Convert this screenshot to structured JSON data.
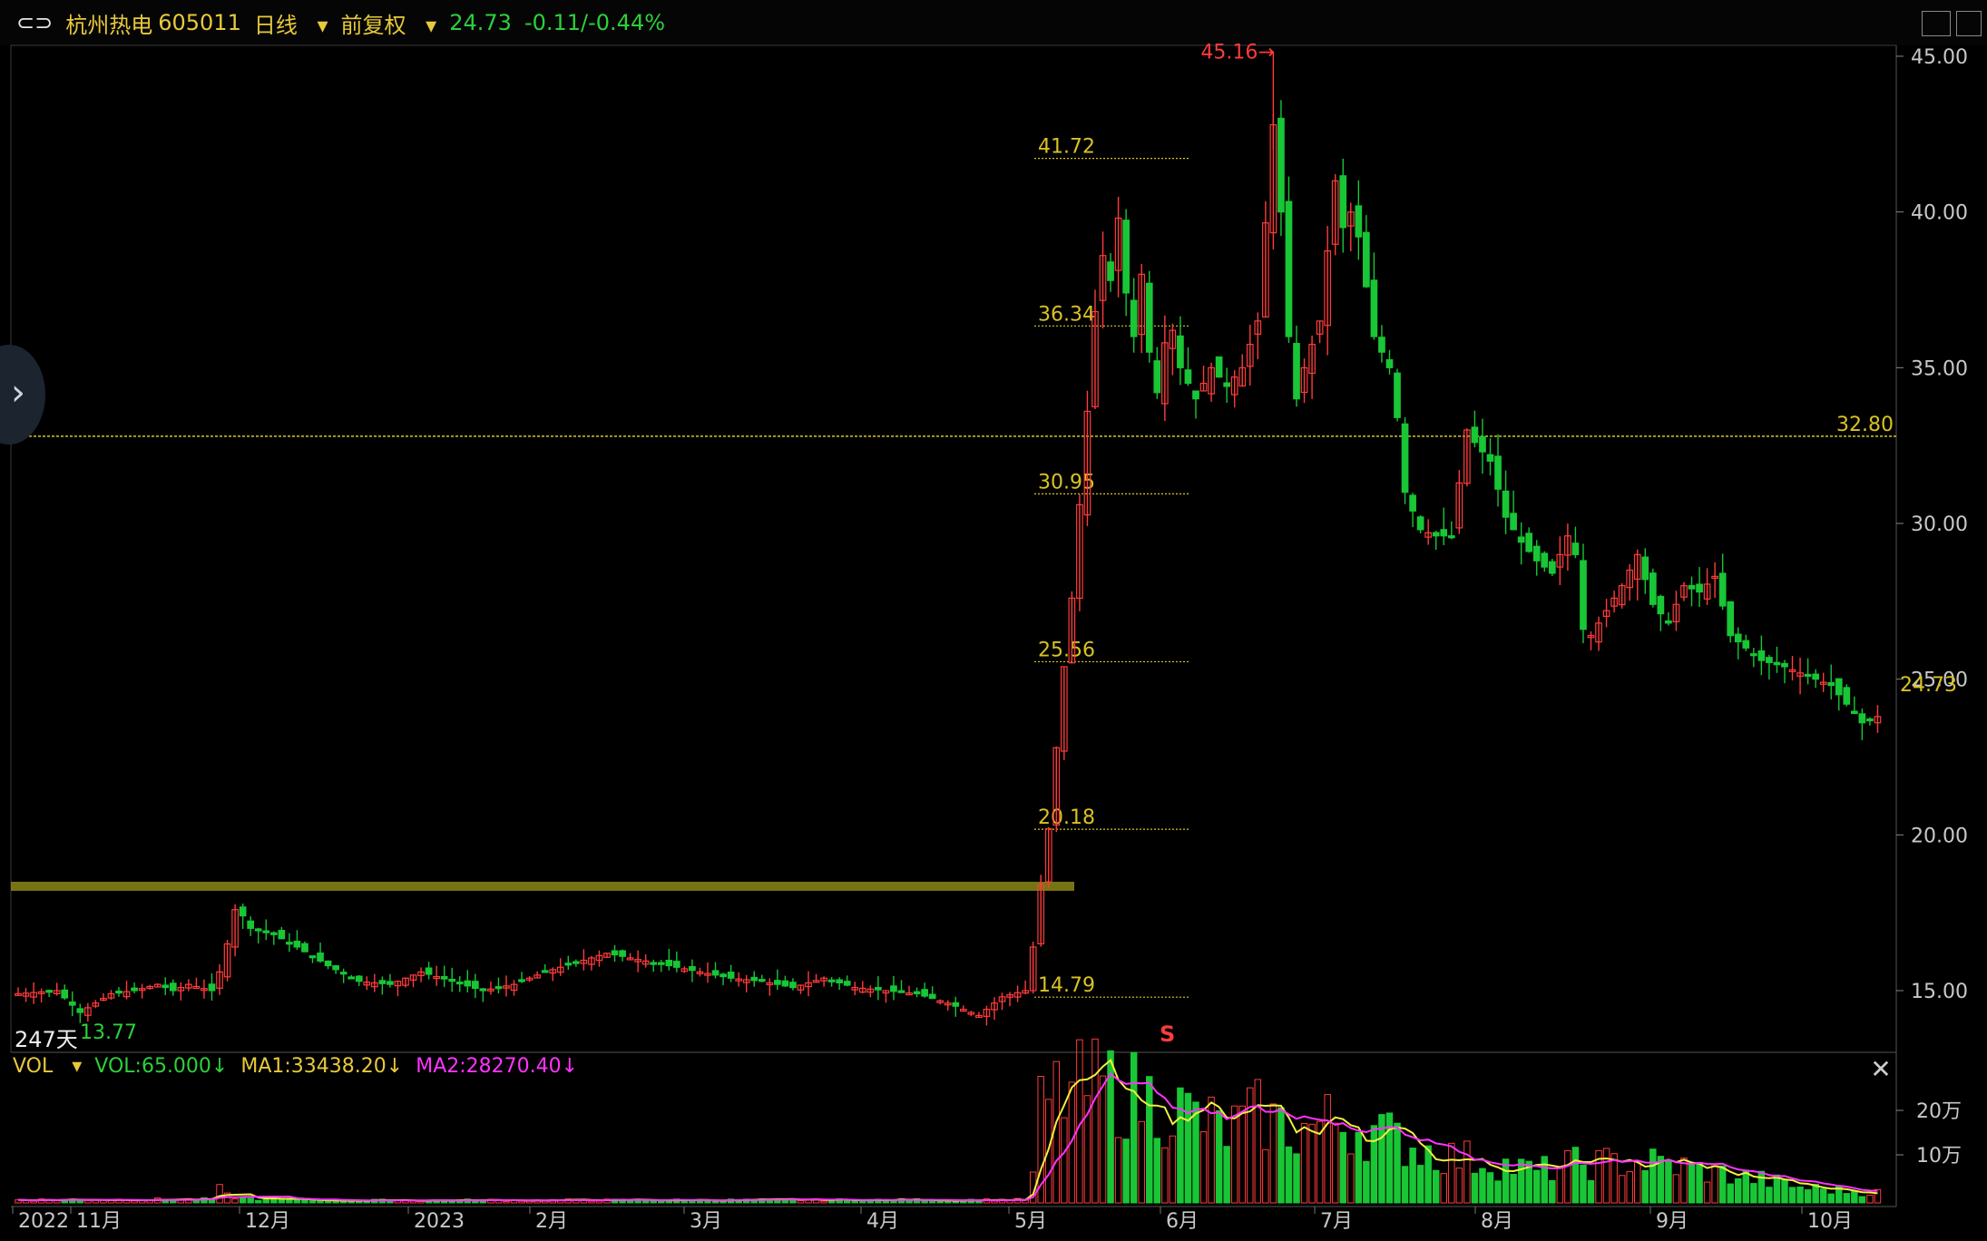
{
  "header": {
    "logo_icon": "link-icon",
    "name": "杭州热电",
    "code": "605011",
    "period": "日线",
    "adjust": "前复权",
    "price": "24.73",
    "change": "-0.11/-0.44%"
  },
  "volume_header": {
    "vol_label": "VOL",
    "vol_value": "VOL:65.000↓",
    "ma1": "MA1:33438.20↓",
    "ma2": "MA2:28270.40↓"
  },
  "annotations": {
    "days": "247天",
    "low": "13.77",
    "high": "45.16",
    "hline": "32.80",
    "last": "24.73",
    "signal": "S",
    "fib_levels": [
      "41.72",
      "36.34",
      "30.95",
      "25.56",
      "20.18",
      "14.79"
    ]
  },
  "colors": {
    "up": "#ff3b3b",
    "down": "#18c636",
    "axis_text": "#c8c8c8",
    "level_line": "#d9c224",
    "ma1": "#f0f03c",
    "ma2": "#ff33ff"
  },
  "chart_data": {
    "type": "candlestick",
    "y_ticks": [
      "45.00",
      "40.00",
      "35.00",
      "30.00",
      "25.00",
      "20.00",
      "15.00"
    ],
    "ylim": [
      13.0,
      45.5
    ],
    "vol_ticks": [
      "20万",
      "10万"
    ],
    "x_labels": [
      "2022",
      "11月",
      "12月",
      "2023",
      "2月",
      "3月",
      "4月",
      "5月",
      "6月",
      "7月",
      "8月",
      "9月",
      "10月"
    ],
    "close_path": [
      [
        0,
        14.9
      ],
      [
        5,
        15.0
      ],
      [
        8,
        14.3
      ],
      [
        12,
        14.9
      ],
      [
        15,
        15.0
      ],
      [
        18,
        15.2
      ],
      [
        20,
        15.0
      ],
      [
        22,
        15.2
      ],
      [
        25,
        15.0
      ],
      [
        26,
        15.6
      ],
      [
        27,
        16.5
      ],
      [
        28,
        17.6
      ],
      [
        29,
        17.4
      ],
      [
        30,
        17.0
      ],
      [
        33,
        16.8
      ],
      [
        36,
        16.4
      ],
      [
        40,
        15.8
      ],
      [
        44,
        15.3
      ],
      [
        48,
        15.2
      ],
      [
        52,
        15.6
      ],
      [
        56,
        15.3
      ],
      [
        60,
        15.0
      ],
      [
        64,
        15.2
      ],
      [
        68,
        15.6
      ],
      [
        72,
        15.9
      ],
      [
        76,
        16.2
      ],
      [
        80,
        16.0
      ],
      [
        84,
        15.8
      ],
      [
        88,
        15.6
      ],
      [
        92,
        15.4
      ],
      [
        96,
        15.3
      ],
      [
        100,
        15.1
      ],
      [
        104,
        15.4
      ],
      [
        108,
        15.1
      ],
      [
        112,
        15.0
      ],
      [
        116,
        14.9
      ],
      [
        120,
        14.6
      ],
      [
        124,
        14.2
      ],
      [
        127,
        14.8
      ],
      [
        130,
        15.0
      ],
      [
        131,
        16.4
      ],
      [
        132,
        18.4
      ],
      [
        133,
        20.2
      ],
      [
        134,
        22.8
      ],
      [
        135,
        25.4
      ],
      [
        136,
        27.6
      ],
      [
        137,
        30.6
      ],
      [
        138,
        33.6
      ],
      [
        139,
        36.8
      ],
      [
        140,
        38.6
      ],
      [
        141,
        37.8
      ],
      [
        142,
        39.8
      ],
      [
        143,
        37.4
      ],
      [
        144,
        36.0
      ],
      [
        145,
        38.0
      ],
      [
        146,
        35.5
      ],
      [
        147,
        34.2
      ],
      [
        148,
        35.8
      ],
      [
        149,
        36.2
      ],
      [
        150,
        35.0
      ],
      [
        152,
        34.0
      ],
      [
        154,
        35.0
      ],
      [
        156,
        34.4
      ],
      [
        158,
        35.0
      ],
      [
        160,
        36.5
      ],
      [
        162,
        42.8
      ],
      [
        163,
        40.0
      ],
      [
        164,
        36.0
      ],
      [
        165,
        34.0
      ],
      [
        166,
        35.0
      ],
      [
        168,
        36.5
      ],
      [
        170,
        41.0
      ],
      [
        171,
        39.5
      ],
      [
        172,
        40.0
      ],
      [
        173,
        39.2
      ],
      [
        175,
        36.0
      ],
      [
        177,
        35.0
      ],
      [
        178,
        33.4
      ],
      [
        179,
        31.0
      ],
      [
        181,
        29.8
      ],
      [
        183,
        29.6
      ],
      [
        185,
        29.6
      ],
      [
        187,
        33.0
      ],
      [
        188,
        32.6
      ],
      [
        190,
        32.0
      ],
      [
        192,
        30.2
      ],
      [
        194,
        29.4
      ],
      [
        196,
        28.8
      ],
      [
        198,
        28.4
      ],
      [
        200,
        29.6
      ],
      [
        201,
        29.0
      ],
      [
        202,
        26.6
      ],
      [
        203,
        26.4
      ],
      [
        205,
        27.2
      ],
      [
        207,
        28.0
      ],
      [
        209,
        29.0
      ],
      [
        211,
        27.4
      ],
      [
        213,
        26.8
      ],
      [
        215,
        28.0
      ],
      [
        217,
        27.8
      ],
      [
        219,
        28.3
      ],
      [
        221,
        26.4
      ],
      [
        223,
        26.0
      ],
      [
        225,
        25.6
      ],
      [
        228,
        25.4
      ],
      [
        231,
        25.1
      ],
      [
        234,
        24.8
      ],
      [
        236,
        24.2
      ],
      [
        238,
        23.6
      ],
      [
        240,
        23.8
      ]
    ],
    "volume_profile": [
      [
        0,
        0.6
      ],
      [
        25,
        0.7
      ],
      [
        26,
        2.5
      ],
      [
        27,
        1.4
      ],
      [
        30,
        0.8
      ],
      [
        40,
        0.5
      ],
      [
        130,
        0.6
      ],
      [
        131,
        5.0
      ],
      [
        132,
        18.0
      ],
      [
        134,
        21.0
      ],
      [
        140,
        23.0
      ],
      [
        150,
        18.0
      ],
      [
        156,
        14.0
      ],
      [
        160,
        17.0
      ],
      [
        165,
        14.0
      ],
      [
        170,
        16.0
      ],
      [
        175,
        14.0
      ],
      [
        180,
        11.0
      ],
      [
        185,
        9.0
      ],
      [
        190,
        8.0
      ],
      [
        196,
        6.0
      ],
      [
        200,
        7.5
      ],
      [
        210,
        8.0
      ],
      [
        215,
        7.0
      ],
      [
        225,
        4.5
      ],
      [
        230,
        3.0
      ],
      [
        240,
        2.0
      ]
    ]
  }
}
